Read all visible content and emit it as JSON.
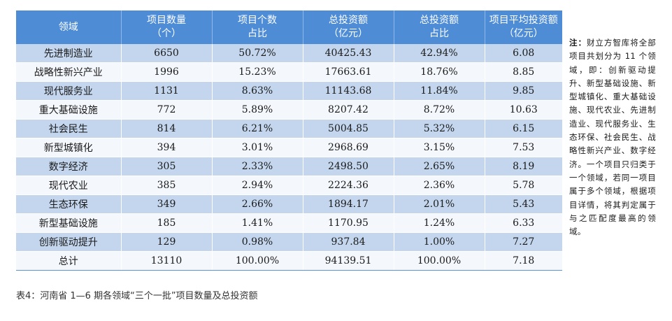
{
  "table": {
    "headers": [
      [
        "领域"
      ],
      [
        "项目数量",
        "（个）"
      ],
      [
        "项目个数",
        "占比"
      ],
      [
        "总投资额",
        "（亿元）"
      ],
      [
        "总投资额",
        "占比"
      ],
      [
        "项目平均投资额",
        "（亿元）"
      ]
    ],
    "rows": [
      [
        "先进制造业",
        "6650",
        "50.72%",
        "40425.43",
        "42.94%",
        "6.08"
      ],
      [
        "战略性新兴产业",
        "1996",
        "15.23%",
        "17663.61",
        "18.76%",
        "8.85"
      ],
      [
        "现代服务业",
        "1131",
        "8.63%",
        "11143.68",
        "11.84%",
        "9.85"
      ],
      [
        "重大基础设施",
        "772",
        "5.89%",
        "8207.42",
        "8.72%",
        "10.63"
      ],
      [
        "社会民生",
        "814",
        "6.21%",
        "5004.85",
        "5.32%",
        "6.15"
      ],
      [
        "新型城镇化",
        "394",
        "3.01%",
        "2968.69",
        "3.15%",
        "7.53"
      ],
      [
        "数字经济",
        "305",
        "2.33%",
        "2498.50",
        "2.65%",
        "8.19"
      ],
      [
        "现代农业",
        "385",
        "2.94%",
        "2224.36",
        "2.36%",
        "5.78"
      ],
      [
        "生态环保",
        "349",
        "2.66%",
        "1894.17",
        "2.01%",
        "5.43"
      ],
      [
        "新型基础设施",
        "185",
        "1.41%",
        "1170.95",
        "1.24%",
        "6.33"
      ],
      [
        "创新驱动提升",
        "129",
        "0.98%",
        "937.84",
        "1.00%",
        "7.27"
      ],
      [
        "总计",
        "13110",
        "100.00%",
        "94139.51",
        "100.00%",
        "7.18"
      ]
    ]
  },
  "caption": "表4：河南省 1—6 期各领域“三个一批”项目数量及总投资额",
  "note": {
    "label": "注：",
    "text": "财立方智库将全部项目共划分为 11 个领域，即：创新驱动提升、新型基础设施、新型城镇化、重大基础设施、现代农业、先进制造业、现代服务业、生态环保、社会民生、战略性新兴产业、数字经济。一个项目只归类于一个领域，若同一项目属于多个领域，根据项目详情，将其判定属于与之匹配度最高的领域。"
  }
}
